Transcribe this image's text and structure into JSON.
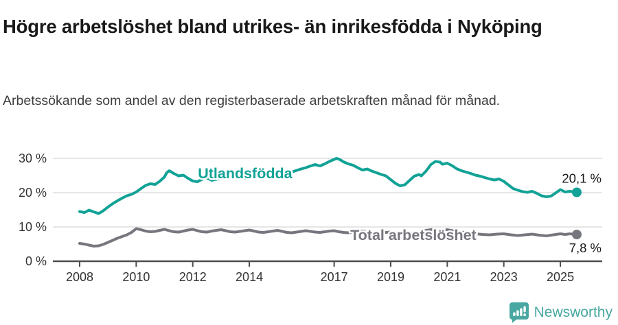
{
  "header": {
    "title": "Högre arbetslöshet bland utrikes- än inrikesfödda i Nyköping",
    "subtitle": "Arbetssökande som andel av den registerbaserade arbetskraften månad för månad."
  },
  "chart_data": {
    "type": "line",
    "title": "Högre arbetslöshet bland utrikes- än inrikesfödda i Nyköping",
    "subtitle": "Arbetssökande som andel av den registerbaserade arbetskraften månad för månad.",
    "xlabel": "",
    "ylabel": "",
    "xlim": [
      2007.6,
      2026.1
    ],
    "ylim": [
      0,
      30
    ],
    "grid": "horizontal",
    "legend_position": "inline-labels",
    "x_ticks": [
      {
        "v": 2008,
        "label": "2008"
      },
      {
        "v": 2010,
        "label": "2010"
      },
      {
        "v": 2012,
        "label": "2012"
      },
      {
        "v": 2014,
        "label": "2014"
      },
      {
        "v": 2017,
        "label": "2017"
      },
      {
        "v": 2019,
        "label": "2019"
      },
      {
        "v": 2021,
        "label": "2021"
      },
      {
        "v": 2023,
        "label": "2023"
      },
      {
        "v": 2025,
        "label": "2025"
      }
    ],
    "y_ticks": [
      {
        "v": 0,
        "label": "0 %"
      },
      {
        "v": 10,
        "label": "10 %"
      },
      {
        "v": 20,
        "label": "20 %"
      },
      {
        "v": 30,
        "label": "30 %"
      }
    ],
    "series": [
      {
        "name": "Utlandsfödda",
        "color": "#12A296",
        "end_label": "20,1 %",
        "end_value": 20.1,
        "label_at": [
          2013.85,
          25.6
        ],
        "end_label_dy": -14,
        "points": [
          [
            2008.0,
            14.5
          ],
          [
            2008.17,
            14.2
          ],
          [
            2008.33,
            14.9
          ],
          [
            2008.5,
            14.4
          ],
          [
            2008.67,
            13.9
          ],
          [
            2008.83,
            14.7
          ],
          [
            2009.0,
            15.8
          ],
          [
            2009.17,
            16.8
          ],
          [
            2009.33,
            17.6
          ],
          [
            2009.5,
            18.4
          ],
          [
            2009.67,
            19.1
          ],
          [
            2009.83,
            19.5
          ],
          [
            2010.0,
            20.2
          ],
          [
            2010.17,
            21.2
          ],
          [
            2010.33,
            22.1
          ],
          [
            2010.5,
            22.6
          ],
          [
            2010.67,
            22.4
          ],
          [
            2010.83,
            23.3
          ],
          [
            2011.0,
            24.6
          ],
          [
            2011.08,
            25.8
          ],
          [
            2011.17,
            26.4
          ],
          [
            2011.33,
            25.6
          ],
          [
            2011.5,
            24.9
          ],
          [
            2011.67,
            25.1
          ],
          [
            2011.83,
            24.2
          ],
          [
            2012.0,
            23.4
          ],
          [
            2012.17,
            23.2
          ],
          [
            2012.33,
            23.9
          ],
          [
            2012.5,
            24.3
          ],
          [
            2012.67,
            23.6
          ],
          [
            2012.83,
            23.9
          ],
          [
            2013.0,
            24.2
          ],
          [
            2013.17,
            24.5
          ],
          [
            2013.33,
            24.7
          ],
          [
            2013.5,
            24.3
          ],
          [
            2013.67,
            24.6
          ],
          [
            2013.83,
            24.1
          ],
          [
            2014.0,
            24.4
          ],
          [
            2014.17,
            24.7
          ],
          [
            2014.33,
            25.0
          ],
          [
            2014.5,
            25.2
          ],
          [
            2014.67,
            24.8
          ],
          [
            2014.83,
            25.2
          ],
          [
            2015.0,
            25.6
          ],
          [
            2015.17,
            25.9
          ],
          [
            2015.33,
            26.3
          ],
          [
            2015.5,
            26.0
          ],
          [
            2015.67,
            26.5
          ],
          [
            2015.83,
            26.9
          ],
          [
            2016.0,
            27.3
          ],
          [
            2016.17,
            27.8
          ],
          [
            2016.33,
            28.2
          ],
          [
            2016.5,
            27.8
          ],
          [
            2016.67,
            28.4
          ],
          [
            2016.83,
            29.1
          ],
          [
            2017.0,
            29.7
          ],
          [
            2017.08,
            30.0
          ],
          [
            2017.17,
            29.8
          ],
          [
            2017.33,
            29.0
          ],
          [
            2017.5,
            28.4
          ],
          [
            2017.67,
            28.0
          ],
          [
            2017.83,
            27.3
          ],
          [
            2018.0,
            26.6
          ],
          [
            2018.17,
            26.9
          ],
          [
            2018.33,
            26.3
          ],
          [
            2018.5,
            25.8
          ],
          [
            2018.67,
            25.3
          ],
          [
            2018.83,
            24.9
          ],
          [
            2019.0,
            23.8
          ],
          [
            2019.17,
            22.7
          ],
          [
            2019.33,
            22.0
          ],
          [
            2019.5,
            22.3
          ],
          [
            2019.67,
            23.6
          ],
          [
            2019.83,
            24.8
          ],
          [
            2020.0,
            25.3
          ],
          [
            2020.08,
            24.9
          ],
          [
            2020.25,
            26.3
          ],
          [
            2020.42,
            28.2
          ],
          [
            2020.58,
            29.1
          ],
          [
            2020.75,
            28.9
          ],
          [
            2020.83,
            28.3
          ],
          [
            2021.0,
            28.6
          ],
          [
            2021.17,
            27.9
          ],
          [
            2021.33,
            27.0
          ],
          [
            2021.5,
            26.4
          ],
          [
            2021.67,
            26.0
          ],
          [
            2021.83,
            25.6
          ],
          [
            2022.0,
            25.1
          ],
          [
            2022.17,
            24.8
          ],
          [
            2022.33,
            24.4
          ],
          [
            2022.5,
            24.0
          ],
          [
            2022.67,
            23.7
          ],
          [
            2022.83,
            24.0
          ],
          [
            2023.0,
            23.3
          ],
          [
            2023.17,
            22.2
          ],
          [
            2023.33,
            21.2
          ],
          [
            2023.5,
            20.7
          ],
          [
            2023.67,
            20.3
          ],
          [
            2023.83,
            20.1
          ],
          [
            2024.0,
            20.4
          ],
          [
            2024.17,
            19.8
          ],
          [
            2024.33,
            19.1
          ],
          [
            2024.5,
            18.8
          ],
          [
            2024.67,
            19.0
          ],
          [
            2024.83,
            19.9
          ],
          [
            2025.0,
            20.9
          ],
          [
            2025.17,
            20.2
          ],
          [
            2025.33,
            20.4
          ],
          [
            2025.58,
            20.1
          ]
        ]
      },
      {
        "name": "Total arbetslöshet",
        "color": "#76767E",
        "end_label": "7,8 %",
        "end_value": 7.8,
        "label_at": [
          2019.8,
          7.6
        ],
        "end_label_dy": 26,
        "points": [
          [
            2008.0,
            5.2
          ],
          [
            2008.17,
            5.0
          ],
          [
            2008.33,
            4.7
          ],
          [
            2008.5,
            4.4
          ],
          [
            2008.67,
            4.5
          ],
          [
            2008.83,
            4.9
          ],
          [
            2009.0,
            5.5
          ],
          [
            2009.17,
            6.1
          ],
          [
            2009.33,
            6.7
          ],
          [
            2009.5,
            7.2
          ],
          [
            2009.67,
            7.7
          ],
          [
            2009.83,
            8.4
          ],
          [
            2010.0,
            9.5
          ],
          [
            2010.17,
            9.2
          ],
          [
            2010.33,
            8.8
          ],
          [
            2010.5,
            8.6
          ],
          [
            2010.67,
            8.7
          ],
          [
            2010.83,
            9.0
          ],
          [
            2011.0,
            9.3
          ],
          [
            2011.17,
            8.9
          ],
          [
            2011.33,
            8.6
          ],
          [
            2011.5,
            8.5
          ],
          [
            2011.67,
            8.8
          ],
          [
            2011.83,
            9.1
          ],
          [
            2012.0,
            9.3
          ],
          [
            2012.17,
            8.9
          ],
          [
            2012.33,
            8.6
          ],
          [
            2012.5,
            8.5
          ],
          [
            2012.67,
            8.8
          ],
          [
            2012.83,
            9.0
          ],
          [
            2013.0,
            9.2
          ],
          [
            2013.17,
            8.9
          ],
          [
            2013.33,
            8.6
          ],
          [
            2013.5,
            8.5
          ],
          [
            2013.67,
            8.7
          ],
          [
            2013.83,
            8.9
          ],
          [
            2014.0,
            9.1
          ],
          [
            2014.17,
            8.8
          ],
          [
            2014.33,
            8.5
          ],
          [
            2014.5,
            8.4
          ],
          [
            2014.67,
            8.6
          ],
          [
            2014.83,
            8.8
          ],
          [
            2015.0,
            9.0
          ],
          [
            2015.17,
            8.7
          ],
          [
            2015.33,
            8.4
          ],
          [
            2015.5,
            8.3
          ],
          [
            2015.67,
            8.5
          ],
          [
            2015.83,
            8.7
          ],
          [
            2016.0,
            8.9
          ],
          [
            2016.17,
            8.7
          ],
          [
            2016.33,
            8.5
          ],
          [
            2016.5,
            8.4
          ],
          [
            2016.67,
            8.6
          ],
          [
            2016.83,
            8.8
          ],
          [
            2017.0,
            8.9
          ],
          [
            2017.17,
            8.6
          ],
          [
            2017.33,
            8.4
          ],
          [
            2017.5,
            8.3
          ],
          [
            2017.67,
            8.5
          ],
          [
            2017.83,
            8.7
          ],
          [
            2018.0,
            8.8
          ],
          [
            2018.17,
            8.5
          ],
          [
            2018.33,
            8.2
          ],
          [
            2018.5,
            8.0
          ],
          [
            2018.67,
            8.2
          ],
          [
            2018.83,
            8.4
          ],
          [
            2019.0,
            8.5
          ],
          [
            2019.17,
            8.2
          ],
          [
            2019.33,
            8.0
          ],
          [
            2019.5,
            7.9
          ],
          [
            2019.67,
            8.1
          ],
          [
            2019.83,
            8.3
          ],
          [
            2020.0,
            8.5
          ],
          [
            2020.25,
            9.0
          ],
          [
            2020.5,
            9.3
          ],
          [
            2020.75,
            9.1
          ],
          [
            2021.0,
            9.2
          ],
          [
            2021.25,
            8.8
          ],
          [
            2021.5,
            8.5
          ],
          [
            2021.75,
            8.2
          ],
          [
            2022.0,
            8.0
          ],
          [
            2022.25,
            7.8
          ],
          [
            2022.5,
            7.7
          ],
          [
            2022.75,
            7.9
          ],
          [
            2023.0,
            8.0
          ],
          [
            2023.25,
            7.7
          ],
          [
            2023.5,
            7.5
          ],
          [
            2023.75,
            7.7
          ],
          [
            2024.0,
            7.9
          ],
          [
            2024.25,
            7.6
          ],
          [
            2024.5,
            7.4
          ],
          [
            2024.75,
            7.7
          ],
          [
            2025.0,
            8.0
          ],
          [
            2025.17,
            7.8
          ],
          [
            2025.33,
            8.0
          ],
          [
            2025.58,
            7.8
          ]
        ]
      }
    ],
    "colors": {
      "grid": "#D8D8D8",
      "axis": "#4D4D4D",
      "tick_label": "#333333",
      "end_label": "#1A1A1A"
    }
  },
  "footer": {
    "brand": "Newsworthy",
    "brand_color": "#48A7A0",
    "logo_icon": "newsworthy-bar-chart-speech-bubble-icon"
  }
}
